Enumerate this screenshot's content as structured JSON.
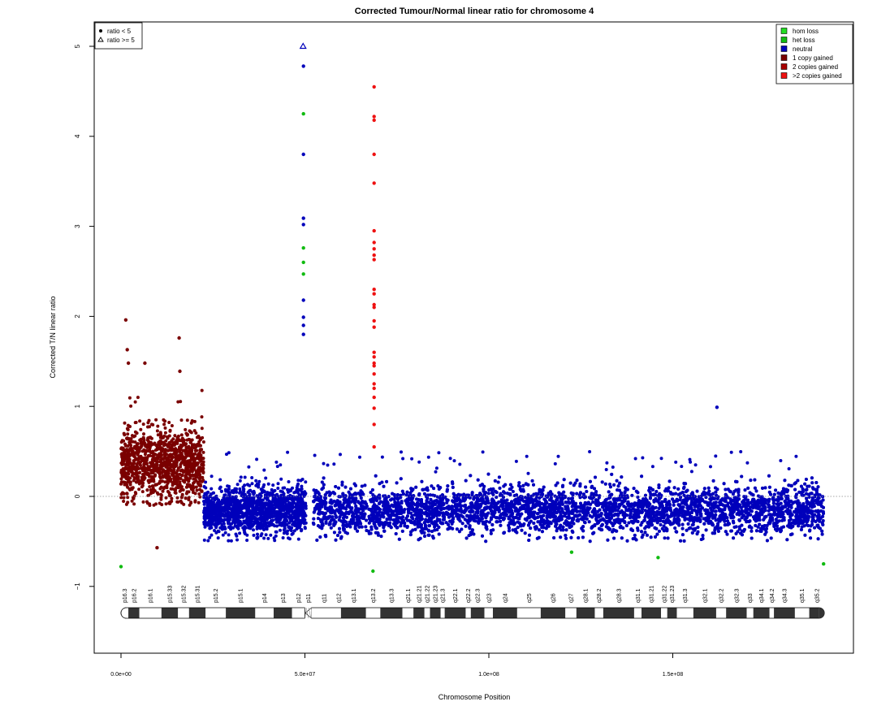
{
  "chart_data": {
    "type": "scatter",
    "title": "Corrected Tumour/Normal linear ratio for chromosome  4",
    "xlabel": "Chromosome Position",
    "ylabel": "Corrected T/N linear ratio",
    "xlim": [
      -7000000,
      199000000
    ],
    "ylim": [
      -1.75,
      5.4
    ],
    "x_ticks": [
      0,
      50000000,
      100000000,
      150000000
    ],
    "x_tick_labels": [
      "0.0e+00",
      "5.0e+07",
      "1.0e+08",
      "1.5e+08"
    ],
    "y_ticks": [
      -1,
      0,
      1,
      2,
      3,
      4,
      5
    ],
    "y_tick_labels": [
      "−1",
      "0",
      "1",
      "2",
      "3",
      "4",
      "5"
    ],
    "reference_line_y": 0,
    "shape_legend": {
      "position": "top-left",
      "items": [
        {
          "label": "ratio < 5",
          "shape": "circle"
        },
        {
          "label": "ratio >= 5",
          "shape": "triangle"
        }
      ]
    },
    "category_legend": {
      "position": "top-right",
      "items": [
        {
          "label": "hom loss",
          "color": "#22dd22"
        },
        {
          "label": "het loss",
          "color": "#11bb11"
        },
        {
          "label": "neutral",
          "color": "#0000bb"
        },
        {
          "label": "1 copy gained",
          "color": "#7a0000"
        },
        {
          "label": "2 copies gained",
          "color": "#aa0000"
        },
        {
          "label": ">2 copies gained",
          "color": "#ee1111"
        }
      ]
    },
    "segments": [
      {
        "category": "1 copy gained",
        "x_start": 0,
        "x_end": 22500000,
        "median": 0.35
      },
      {
        "category": "neutral",
        "x_start": 22500000,
        "x_end": 50300000,
        "median": -0.15
      },
      {
        "category": "neutral",
        "x_start": 52300000,
        "x_end": 191000000,
        "median": -0.15
      }
    ],
    "notable_points": [
      {
        "x": 49500000,
        "y": 5.0,
        "category": "neutral",
        "shape": "triangle"
      },
      {
        "x": 49600000,
        "y": 4.78,
        "category": "neutral"
      },
      {
        "x": 49600000,
        "y": 4.25,
        "category": "het loss"
      },
      {
        "x": 49600000,
        "y": 3.8,
        "category": "neutral"
      },
      {
        "x": 49600000,
        "y": 3.09,
        "category": "neutral"
      },
      {
        "x": 49600000,
        "y": 3.02,
        "category": "neutral"
      },
      {
        "x": 49600000,
        "y": 2.76,
        "category": "het loss"
      },
      {
        "x": 49600000,
        "y": 2.6,
        "category": "het loss"
      },
      {
        "x": 49600000,
        "y": 2.47,
        "category": "het loss"
      },
      {
        "x": 49600000,
        "y": 2.18,
        "category": "neutral"
      },
      {
        "x": 49600000,
        "y": 1.99,
        "category": "neutral"
      },
      {
        "x": 49600000,
        "y": 1.9,
        "category": "neutral"
      },
      {
        "x": 49600000,
        "y": 1.8,
        "category": "neutral"
      },
      {
        "x": 68800000,
        "y": 4.55,
        "category": ">2 copies gained"
      },
      {
        "x": 68800000,
        "y": 4.22,
        "category": ">2 copies gained"
      },
      {
        "x": 68800000,
        "y": 4.18,
        "category": ">2 copies gained"
      },
      {
        "x": 68800000,
        "y": 3.8,
        "category": ">2 copies gained"
      },
      {
        "x": 68800000,
        "y": 3.48,
        "category": ">2 copies gained"
      },
      {
        "x": 68800000,
        "y": 2.95,
        "category": ">2 copies gained"
      },
      {
        "x": 68800000,
        "y": 2.82,
        "category": ">2 copies gained"
      },
      {
        "x": 68800000,
        "y": 2.75,
        "category": ">2 copies gained"
      },
      {
        "x": 68800000,
        "y": 2.68,
        "category": ">2 copies gained"
      },
      {
        "x": 68800000,
        "y": 2.63,
        "category": ">2 copies gained"
      },
      {
        "x": 68800000,
        "y": 2.3,
        "category": ">2 copies gained"
      },
      {
        "x": 68800000,
        "y": 2.25,
        "category": ">2 copies gained"
      },
      {
        "x": 68800000,
        "y": 2.13,
        "category": ">2 copies gained"
      },
      {
        "x": 68800000,
        "y": 2.1,
        "category": ">2 copies gained"
      },
      {
        "x": 68800000,
        "y": 1.95,
        "category": ">2 copies gained"
      },
      {
        "x": 68800000,
        "y": 1.88,
        "category": ">2 copies gained"
      },
      {
        "x": 68800000,
        "y": 1.6,
        "category": ">2 copies gained"
      },
      {
        "x": 68800000,
        "y": 1.55,
        "category": ">2 copies gained"
      },
      {
        "x": 68800000,
        "y": 1.48,
        "category": ">2 copies gained"
      },
      {
        "x": 68800000,
        "y": 1.45,
        "category": ">2 copies gained"
      },
      {
        "x": 68800000,
        "y": 1.36,
        "category": ">2 copies gained"
      },
      {
        "x": 68800000,
        "y": 1.25,
        "category": ">2 copies gained"
      },
      {
        "x": 68800000,
        "y": 1.2,
        "category": ">2 copies gained"
      },
      {
        "x": 68800000,
        "y": 1.1,
        "category": ">2 copies gained"
      },
      {
        "x": 68800000,
        "y": 0.98,
        "category": ">2 copies gained"
      },
      {
        "x": 68800000,
        "y": 0.8,
        "category": ">2 copies gained"
      },
      {
        "x": 68800000,
        "y": 0.55,
        "category": ">2 copies gained"
      },
      {
        "x": 1300000,
        "y": 1.96,
        "category": "1 copy gained"
      },
      {
        "x": 1700000,
        "y": 1.63,
        "category": "1 copy gained"
      },
      {
        "x": 2000000,
        "y": 1.48,
        "category": "1 copy gained"
      },
      {
        "x": 6500000,
        "y": 1.48,
        "category": "1 copy gained"
      },
      {
        "x": 15800000,
        "y": 1.76,
        "category": "1 copy gained"
      },
      {
        "x": 16000000,
        "y": 1.39,
        "category": "1 copy gained"
      },
      {
        "x": 9800000,
        "y": -0.57,
        "category": "1 copy gained"
      },
      {
        "x": 162000000,
        "y": 0.99,
        "category": "neutral"
      },
      {
        "x": 0,
        "y": -0.78,
        "category": "het loss"
      },
      {
        "x": 191000000,
        "y": -0.75,
        "category": "het loss"
      },
      {
        "x": 68500000,
        "y": -0.83,
        "category": "het loss"
      },
      {
        "x": 122500000,
        "y": -0.62,
        "category": "het loss"
      },
      {
        "x": 146000000,
        "y": -0.68,
        "category": "het loss"
      }
    ],
    "ideogram": {
      "centromere_mbp": 50.1,
      "bands": [
        {
          "name": "p16.3",
          "start": 0.0,
          "end": 2.0,
          "stain": "gneg"
        },
        {
          "name": "p16.2",
          "start": 2.0,
          "end": 5.0,
          "stain": "gpos50"
        },
        {
          "name": "p16.1",
          "start": 5.0,
          "end": 11.0,
          "stain": "gneg"
        },
        {
          "name": "p15.33",
          "start": 11.0,
          "end": 15.5,
          "stain": "gpos50"
        },
        {
          "name": "p15.32",
          "start": 15.5,
          "end": 18.5,
          "stain": "gneg"
        },
        {
          "name": "p15.31",
          "start": 18.5,
          "end": 23.0,
          "stain": "gpos75"
        },
        {
          "name": "p15.2",
          "start": 23.0,
          "end": 28.5,
          "stain": "gneg"
        },
        {
          "name": "p15.1",
          "start": 28.5,
          "end": 36.5,
          "stain": "gpos100"
        },
        {
          "name": "p14",
          "start": 36.5,
          "end": 41.5,
          "stain": "gneg"
        },
        {
          "name": "p13",
          "start": 41.5,
          "end": 46.5,
          "stain": "gpos50"
        },
        {
          "name": "p12",
          "start": 46.5,
          "end": 50.0,
          "stain": "gneg"
        },
        {
          "name": "p11",
          "start": 50.0,
          "end": 51.8,
          "stain": "acen"
        },
        {
          "name": "q11",
          "start": 51.8,
          "end": 58.5,
          "stain": "gneg"
        },
        {
          "name": "q12",
          "start": 58.5,
          "end": 59.8,
          "stain": "gneg"
        },
        {
          "name": "q13.1",
          "start": 59.8,
          "end": 66.6,
          "stain": "gpos100"
        },
        {
          "name": "q13.2",
          "start": 66.6,
          "end": 70.5,
          "stain": "gneg"
        },
        {
          "name": "q13.3",
          "start": 70.5,
          "end": 76.5,
          "stain": "gpos75"
        },
        {
          "name": "q21.1",
          "start": 76.5,
          "end": 79.5,
          "stain": "gneg"
        },
        {
          "name": "q21.21",
          "start": 79.5,
          "end": 82.5,
          "stain": "gpos50"
        },
        {
          "name": "q21.22",
          "start": 82.5,
          "end": 84.0,
          "stain": "gneg"
        },
        {
          "name": "q21.23",
          "start": 84.0,
          "end": 86.9,
          "stain": "gpos25"
        },
        {
          "name": "q21.3",
          "start": 86.9,
          "end": 88.0,
          "stain": "gneg"
        },
        {
          "name": "q22.1",
          "start": 88.0,
          "end": 93.7,
          "stain": "gpos75"
        },
        {
          "name": "q22.2",
          "start": 93.7,
          "end": 95.1,
          "stain": "gneg"
        },
        {
          "name": "q22.3",
          "start": 95.1,
          "end": 98.8,
          "stain": "gpos75"
        },
        {
          "name": "q23",
          "start": 98.8,
          "end": 101.1,
          "stain": "gneg"
        },
        {
          "name": "q24",
          "start": 101.1,
          "end": 107.7,
          "stain": "gpos100"
        },
        {
          "name": "q25",
          "start": 107.7,
          "end": 114.1,
          "stain": "gneg"
        },
        {
          "name": "q26",
          "start": 114.1,
          "end": 120.8,
          "stain": "gpos75"
        },
        {
          "name": "q27",
          "start": 120.8,
          "end": 123.8,
          "stain": "gneg"
        },
        {
          "name": "q28.1",
          "start": 123.8,
          "end": 128.8,
          "stain": "gpos50"
        },
        {
          "name": "q28.2",
          "start": 128.8,
          "end": 131.1,
          "stain": "gneg"
        },
        {
          "name": "q28.3",
          "start": 131.1,
          "end": 139.5,
          "stain": "gpos100"
        },
        {
          "name": "q31.1",
          "start": 139.5,
          "end": 141.5,
          "stain": "gneg"
        },
        {
          "name": "q31.21",
          "start": 141.5,
          "end": 146.8,
          "stain": "gpos25"
        },
        {
          "name": "q31.22",
          "start": 146.8,
          "end": 148.5,
          "stain": "gneg"
        },
        {
          "name": "q31.23",
          "start": 148.5,
          "end": 151.1,
          "stain": "gpos25"
        },
        {
          "name": "q31.3",
          "start": 151.1,
          "end": 155.6,
          "stain": "gneg"
        },
        {
          "name": "q32.1",
          "start": 155.6,
          "end": 161.8,
          "stain": "gpos100"
        },
        {
          "name": "q32.2",
          "start": 161.8,
          "end": 164.5,
          "stain": "gneg"
        },
        {
          "name": "q32.3",
          "start": 164.5,
          "end": 170.1,
          "stain": "gpos100"
        },
        {
          "name": "q33",
          "start": 170.1,
          "end": 171.9,
          "stain": "gneg"
        },
        {
          "name": "q34.1",
          "start": 171.9,
          "end": 176.3,
          "stain": "gpos75"
        },
        {
          "name": "q34.2",
          "start": 176.3,
          "end": 177.5,
          "stain": "gneg"
        },
        {
          "name": "q34.3",
          "start": 177.5,
          "end": 183.2,
          "stain": "gpos100"
        },
        {
          "name": "q35.1",
          "start": 183.2,
          "end": 187.1,
          "stain": "gneg"
        },
        {
          "name": "q35.2",
          "start": 187.1,
          "end": 191.2,
          "stain": "gpos25"
        }
      ]
    }
  }
}
